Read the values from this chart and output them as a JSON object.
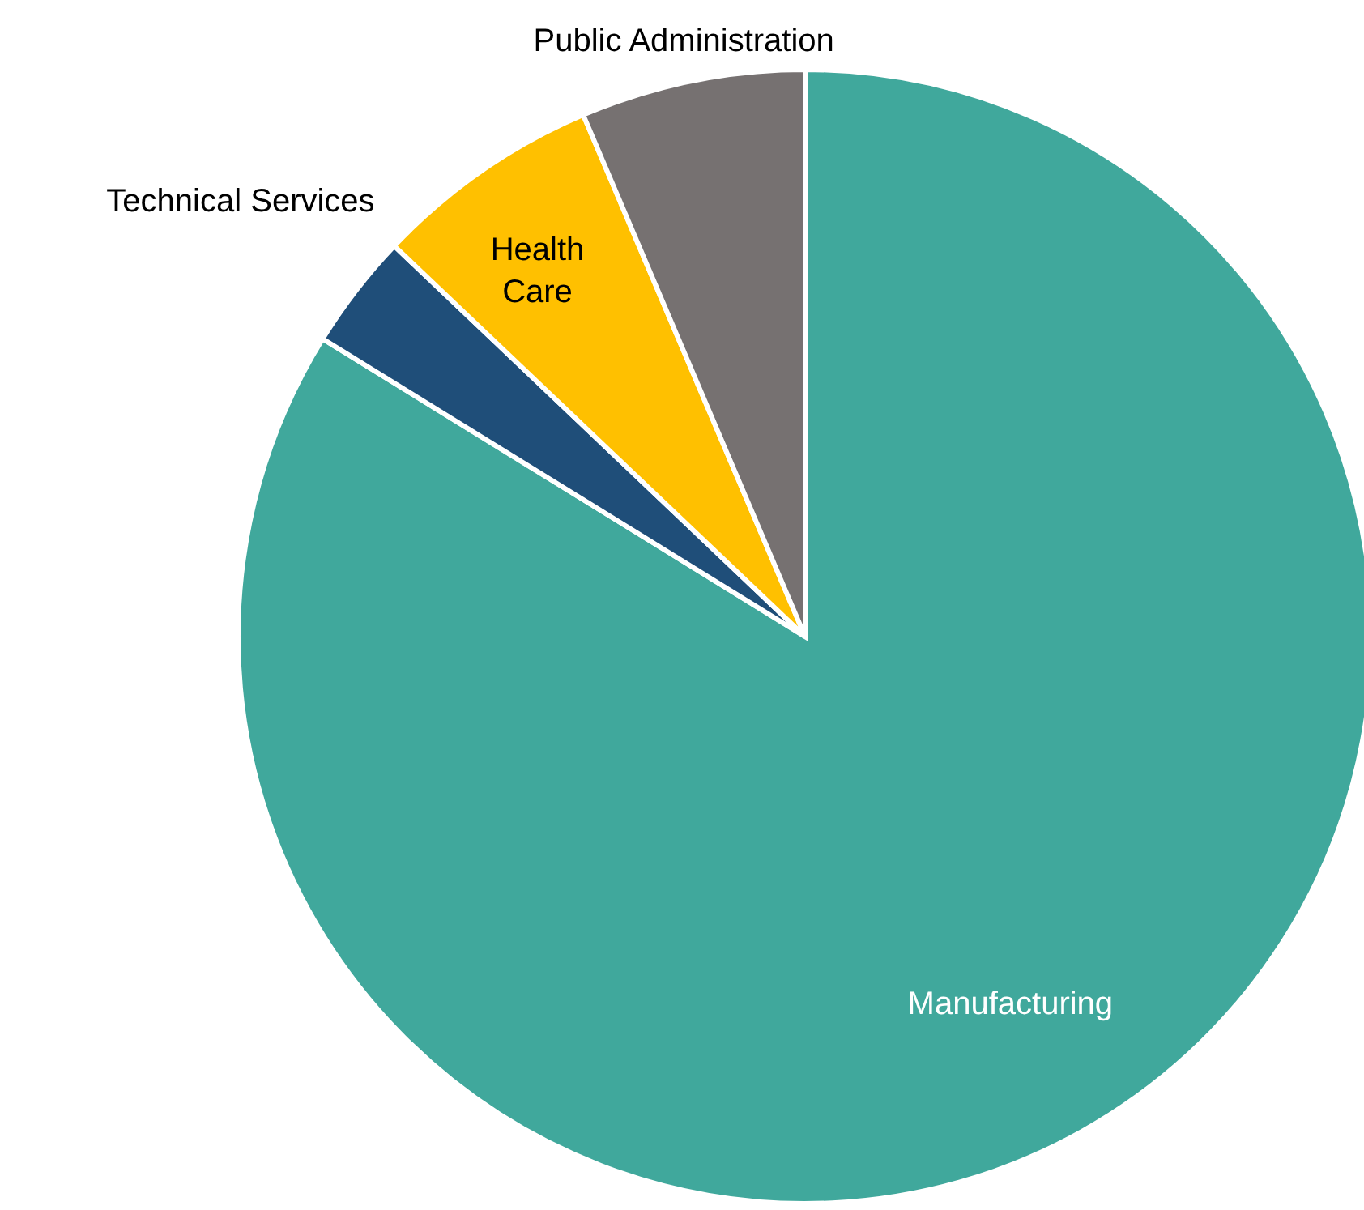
{
  "chart_data": {
    "type": "pie",
    "categories": [
      "Manufacturing",
      "Technical Services",
      "Health Care",
      "Public Administration"
    ],
    "values": [
      83.8,
      3.3,
      6.5,
      6.4
    ],
    "colors": [
      "#40a89c",
      "#1f4e79",
      "#ffc000",
      "#767171"
    ]
  }
}
